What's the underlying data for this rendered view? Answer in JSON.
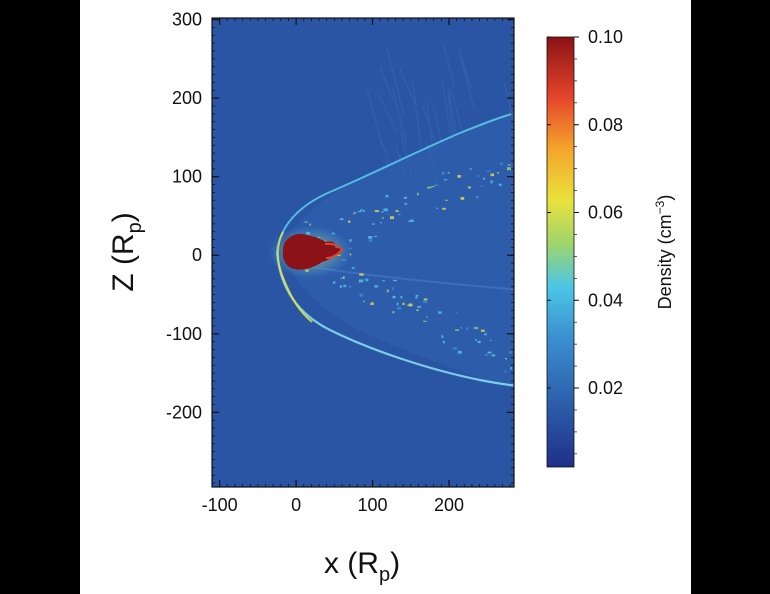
{
  "chart_data": {
    "type": "heatmap",
    "xlabel_main": "x (R",
    "xlabel_sub": "p",
    "xlabel_end": ")",
    "ylabel_main": "Z (R",
    "ylabel_sub": "p",
    "ylabel_end": ")",
    "xlim": [
      -110,
      285
    ],
    "ylim": [
      -295,
      302
    ],
    "x_ticks": [
      -100,
      0,
      100,
      200
    ],
    "y_ticks": [
      300,
      200,
      100,
      0,
      -100,
      -200
    ],
    "x_tick_labels": [
      "-100",
      "0",
      "100",
      "200"
    ],
    "y_tick_labels": [
      "300",
      "200",
      "100",
      "0",
      "-100",
      "-200"
    ],
    "colorbar": {
      "label_main": "Density (cm",
      "label_sup": "−3",
      "label_end": ")",
      "range": [
        0.002,
        0.1
      ],
      "ticks": [
        0.1,
        0.08,
        0.06,
        0.04,
        0.02
      ],
      "tick_labels": [
        "0.10",
        "0.08",
        "0.06",
        "0.04",
        "0.02"
      ],
      "colormap": "jet"
    },
    "background_color": "#2a55a4",
    "features": {
      "dense_core": {
        "x_range": [
          -8,
          45
        ],
        "z_range": [
          -20,
          22
        ],
        "value": 0.1
      },
      "bow_shock_apex": {
        "x": -18,
        "z": 0
      },
      "upper_shock_end": {
        "x": 285,
        "z": 175
      },
      "lower_shock_end": {
        "x": 285,
        "z": -170
      }
    }
  }
}
